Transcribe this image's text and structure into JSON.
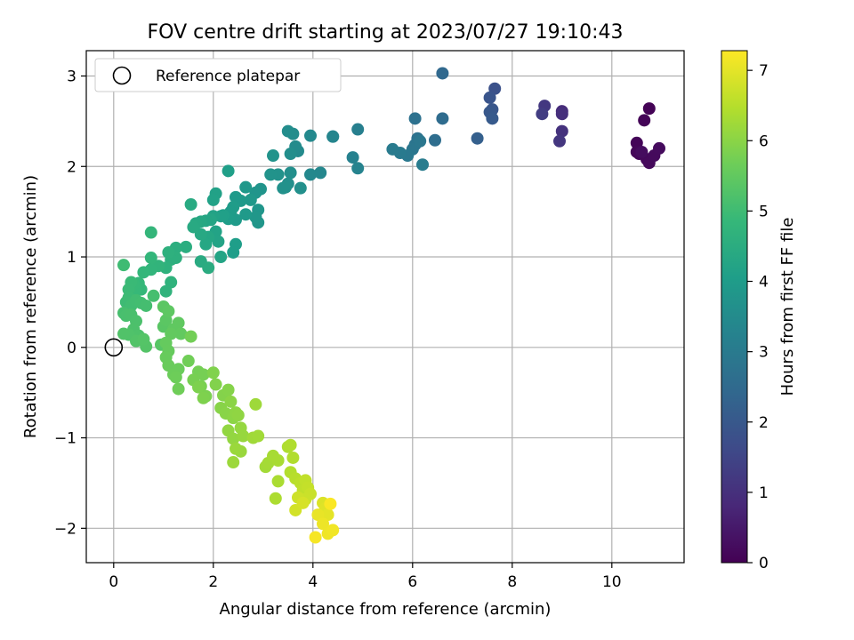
{
  "chart_data": {
    "type": "scatter",
    "title": "FOV centre drift starting at 2023/07/27 19:10:43",
    "xlabel": "Angular distance from reference (arcmin)",
    "ylabel": "Rotation from reference (arcmin)",
    "xlim": [
      -0.55,
      11.45
    ],
    "ylim": [
      -2.38,
      3.28
    ],
    "xticks": [
      0,
      2,
      4,
      6,
      8,
      10
    ],
    "yticks": [
      -2,
      -1,
      0,
      1,
      2,
      3
    ],
    "grid": true,
    "legend": {
      "position": "top-left",
      "entries": [
        {
          "label": "Reference platepar",
          "marker": "open-circle"
        }
      ]
    },
    "reference_point": {
      "x": 0,
      "y": 0
    },
    "colorbar": {
      "label": "Hours from first FF file",
      "min": 0,
      "max": 7.28,
      "ticks": [
        0,
        1,
        2,
        3,
        4,
        5,
        6,
        7
      ],
      "colormap": "viridis"
    },
    "points": [
      [
        10.75,
        2.64,
        0.05
      ],
      [
        10.65,
        2.51,
        0.07
      ],
      [
        10.5,
        2.26,
        0.08
      ],
      [
        10.55,
        2.14,
        0.1
      ],
      [
        10.5,
        2.16,
        0.12
      ],
      [
        10.7,
        2.08,
        0.14
      ],
      [
        10.75,
        2.04,
        0.16
      ],
      [
        10.85,
        2.12,
        0.18
      ],
      [
        10.95,
        2.2,
        0.2
      ],
      [
        10.6,
        2.16,
        0.22
      ],
      [
        9.0,
        2.61,
        0.9
      ],
      [
        9.0,
        2.58,
        1.0
      ],
      [
        9.0,
        2.39,
        1.05
      ],
      [
        8.95,
        2.28,
        1.15
      ],
      [
        8.65,
        2.67,
        1.2
      ],
      [
        8.6,
        2.58,
        1.3
      ],
      [
        7.65,
        2.86,
        1.8
      ],
      [
        7.55,
        2.76,
        1.9
      ],
      [
        7.6,
        2.63,
        1.95
      ],
      [
        7.55,
        2.6,
        2.0
      ],
      [
        7.6,
        2.53,
        2.05
      ],
      [
        7.3,
        2.31,
        2.2
      ],
      [
        6.6,
        3.03,
        2.45
      ],
      [
        6.6,
        2.53,
        2.55
      ],
      [
        6.45,
        2.29,
        2.6
      ],
      [
        6.05,
        2.53,
        2.7
      ],
      [
        6.1,
        2.31,
        2.75
      ],
      [
        6.05,
        2.24,
        2.8
      ],
      [
        6.0,
        2.19,
        2.85
      ],
      [
        6.15,
        2.28,
        2.88
      ],
      [
        5.9,
        2.12,
        2.92
      ],
      [
        5.75,
        2.15,
        2.98
      ],
      [
        5.6,
        2.19,
        3.02
      ],
      [
        6.2,
        2.02,
        3.05
      ],
      [
        4.9,
        2.41,
        3.15
      ],
      [
        4.8,
        2.1,
        3.2
      ],
      [
        4.9,
        1.98,
        3.25
      ],
      [
        4.4,
        2.33,
        3.3
      ],
      [
        4.4,
        2.33,
        3.32
      ],
      [
        4.15,
        1.93,
        3.38
      ],
      [
        3.95,
        1.91,
        3.42
      ],
      [
        3.95,
        2.34,
        3.45
      ],
      [
        3.7,
        2.17,
        3.48
      ],
      [
        3.65,
        2.22,
        3.5
      ],
      [
        3.6,
        2.36,
        3.52
      ],
      [
        3.5,
        2.39,
        3.55
      ],
      [
        3.55,
        2.14,
        3.58
      ],
      [
        3.55,
        1.93,
        3.6
      ],
      [
        3.5,
        1.81,
        3.62
      ],
      [
        3.75,
        1.76,
        3.64
      ],
      [
        3.45,
        1.77,
        3.66
      ],
      [
        3.4,
        1.76,
        3.68
      ],
      [
        3.3,
        1.91,
        3.7
      ],
      [
        3.15,
        1.91,
        3.72
      ],
      [
        3.2,
        2.12,
        3.74
      ],
      [
        2.95,
        1.75,
        3.76
      ],
      [
        2.85,
        1.71,
        3.78
      ],
      [
        2.9,
        1.52,
        3.8
      ],
      [
        2.9,
        1.38,
        3.82
      ],
      [
        2.85,
        1.44,
        3.84
      ],
      [
        2.75,
        1.63,
        3.86
      ],
      [
        2.65,
        1.77,
        3.88
      ],
      [
        2.55,
        1.62,
        3.9
      ],
      [
        2.45,
        1.66,
        3.92
      ],
      [
        2.65,
        1.47,
        3.94
      ],
      [
        2.45,
        1.41,
        3.96
      ],
      [
        2.4,
        1.55,
        3.98
      ],
      [
        2.35,
        1.5,
        4.0
      ],
      [
        2.3,
        1.42,
        4.02
      ],
      [
        2.45,
        1.14,
        4.04
      ],
      [
        2.4,
        1.05,
        4.06
      ],
      [
        2.3,
        1.95,
        4.08
      ],
      [
        2.2,
        1.46,
        4.1
      ],
      [
        2.15,
        1.45,
        4.12
      ],
      [
        2.05,
        1.7,
        4.14
      ],
      [
        2.0,
        1.63,
        4.16
      ],
      [
        2.0,
        1.45,
        4.18
      ],
      [
        2.05,
        1.28,
        4.2
      ],
      [
        2.1,
        1.17,
        4.22
      ],
      [
        2.15,
        1.0,
        4.24
      ],
      [
        1.95,
        1.41,
        4.26
      ],
      [
        1.85,
        1.4,
        4.28
      ],
      [
        1.9,
        1.22,
        4.3
      ],
      [
        1.85,
        1.14,
        4.32
      ],
      [
        1.75,
        1.39,
        4.34
      ],
      [
        1.75,
        1.25,
        4.36
      ],
      [
        1.65,
        1.37,
        4.38
      ],
      [
        1.6,
        1.33,
        4.4
      ],
      [
        1.55,
        1.58,
        4.42
      ],
      [
        1.75,
        0.95,
        4.44
      ],
      [
        1.9,
        0.88,
        4.48
      ],
      [
        1.45,
        1.11,
        4.52
      ],
      [
        1.25,
        1.1,
        4.55
      ],
      [
        1.25,
        0.99,
        4.58
      ],
      [
        1.15,
        0.97,
        4.6
      ],
      [
        1.1,
        1.05,
        4.62
      ],
      [
        1.05,
        0.88,
        4.65
      ],
      [
        1.15,
        0.72,
        4.68
      ],
      [
        1.05,
        0.62,
        4.7
      ],
      [
        0.9,
        0.9,
        4.73
      ],
      [
        0.75,
        0.86,
        4.75
      ],
      [
        0.75,
        0.99,
        4.78
      ],
      [
        0.75,
        1.27,
        4.8
      ],
      [
        0.6,
        0.83,
        4.82
      ],
      [
        0.55,
        0.64,
        4.84
      ],
      [
        0.5,
        0.71,
        4.86
      ],
      [
        0.45,
        0.64,
        4.88
      ],
      [
        0.4,
        0.7,
        4.9
      ],
      [
        0.35,
        0.72,
        4.92
      ],
      [
        0.3,
        0.64,
        4.94
      ],
      [
        0.3,
        0.55,
        4.96
      ],
      [
        0.25,
        0.5,
        4.98
      ],
      [
        0.2,
        0.91,
        5.0
      ],
      [
        0.35,
        0.46,
        5.02
      ],
      [
        0.45,
        0.52,
        5.04
      ],
      [
        0.55,
        0.49,
        5.06
      ],
      [
        0.65,
        0.46,
        5.08
      ],
      [
        0.8,
        0.57,
        5.1
      ],
      [
        0.2,
        0.38,
        5.12
      ],
      [
        0.25,
        0.35,
        5.14
      ],
      [
        0.35,
        0.36,
        5.16
      ],
      [
        0.45,
        0.29,
        5.18
      ],
      [
        0.4,
        0.2,
        5.2
      ],
      [
        0.5,
        0.13,
        5.22
      ],
      [
        0.3,
        0.14,
        5.24
      ],
      [
        0.2,
        0.15,
        5.26
      ],
      [
        0.45,
        0.07,
        5.28
      ],
      [
        0.65,
        0.01,
        5.3
      ],
      [
        0.6,
        0.09,
        5.32
      ],
      [
        0.95,
        0.03,
        5.35
      ],
      [
        1.0,
        0.23,
        5.38
      ],
      [
        1.05,
        0.3,
        5.4
      ],
      [
        1.0,
        0.45,
        5.42
      ],
      [
        1.1,
        0.4,
        5.44
      ],
      [
        1.2,
        0.2,
        5.46
      ],
      [
        1.3,
        0.27,
        5.48
      ],
      [
        1.35,
        0.15,
        5.5
      ],
      [
        1.15,
        0.15,
        5.52
      ],
      [
        1.05,
        0.05,
        5.54
      ],
      [
        1.1,
        -0.04,
        5.56
      ],
      [
        1.05,
        -0.11,
        5.58
      ],
      [
        1.1,
        -0.2,
        5.6
      ],
      [
        1.3,
        -0.24,
        5.62
      ],
      [
        1.2,
        -0.3,
        5.64
      ],
      [
        1.25,
        -0.33,
        5.66
      ],
      [
        1.3,
        -0.46,
        5.68
      ],
      [
        1.5,
        -0.15,
        5.7
      ],
      [
        1.55,
        0.12,
        5.72
      ],
      [
        1.7,
        -0.27,
        5.74
      ],
      [
        1.8,
        -0.3,
        5.76
      ],
      [
        1.6,
        -0.36,
        5.78
      ],
      [
        1.75,
        -0.43,
        5.8
      ],
      [
        1.85,
        -0.54,
        5.82
      ],
      [
        1.7,
        -0.44,
        5.84
      ],
      [
        1.8,
        -0.56,
        5.86
      ],
      [
        2.0,
        -0.28,
        5.88
      ],
      [
        2.05,
        -0.41,
        5.9
      ],
      [
        2.2,
        -0.53,
        5.92
      ],
      [
        2.3,
        -0.47,
        5.94
      ],
      [
        2.15,
        -0.67,
        5.96
      ],
      [
        2.25,
        -0.73,
        5.98
      ],
      [
        2.35,
        -0.6,
        6.0
      ],
      [
        2.4,
        -0.78,
        6.02
      ],
      [
        2.45,
        -0.72,
        6.04
      ],
      [
        2.5,
        -0.75,
        6.06
      ],
      [
        2.3,
        -0.92,
        6.08
      ],
      [
        2.4,
        -1.01,
        6.1
      ],
      [
        2.55,
        -0.89,
        6.12
      ],
      [
        2.6,
        -0.98,
        6.14
      ],
      [
        2.55,
        -1.15,
        6.16
      ],
      [
        2.45,
        -1.12,
        6.18
      ],
      [
        2.4,
        -1.27,
        6.2
      ],
      [
        2.85,
        -0.63,
        6.22
      ],
      [
        2.8,
        -1.0,
        6.24
      ],
      [
        2.9,
        -0.98,
        6.26
      ],
      [
        3.05,
        -1.32,
        6.28
      ],
      [
        3.1,
        -1.28,
        6.3
      ],
      [
        3.2,
        -1.2,
        6.32
      ],
      [
        3.3,
        -1.25,
        6.34
      ],
      [
        3.3,
        -1.48,
        6.36
      ],
      [
        3.25,
        -1.67,
        6.38
      ],
      [
        3.5,
        -1.1,
        6.4
      ],
      [
        3.55,
        -1.08,
        6.42
      ],
      [
        3.6,
        -1.22,
        6.44
      ],
      [
        3.55,
        -1.38,
        6.46
      ],
      [
        3.65,
        -1.45,
        6.5
      ],
      [
        3.75,
        -1.5,
        6.55
      ],
      [
        3.8,
        -1.58,
        6.6
      ],
      [
        3.85,
        -1.47,
        6.62
      ],
      [
        3.9,
        -1.55,
        6.65
      ],
      [
        3.95,
        -1.62,
        6.7
      ],
      [
        3.85,
        -1.68,
        6.72
      ],
      [
        3.7,
        -1.66,
        6.75
      ],
      [
        3.65,
        -1.8,
        6.8
      ],
      [
        3.8,
        -1.72,
        6.85
      ],
      [
        4.2,
        -1.72,
        6.9
      ],
      [
        4.25,
        -1.78,
        6.95
      ],
      [
        4.3,
        -1.85,
        7.0
      ],
      [
        4.1,
        -1.85,
        7.05
      ],
      [
        4.2,
        -1.95,
        7.1
      ],
      [
        4.3,
        -2.06,
        7.12
      ],
      [
        4.4,
        -2.02,
        7.15
      ],
      [
        4.05,
        -2.1,
        7.2
      ],
      [
        4.35,
        -1.73,
        7.25
      ]
    ]
  }
}
